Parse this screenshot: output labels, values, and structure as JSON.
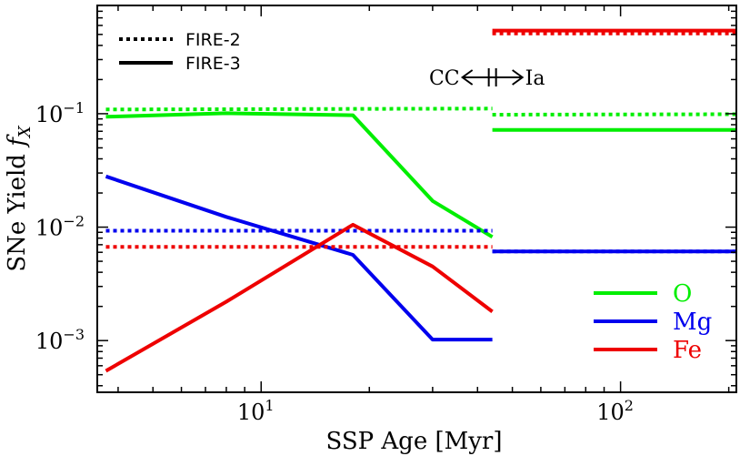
{
  "chart_data": {
    "type": "line",
    "xlabel": "SSP Age [Myr]",
    "ylabel": "SNe Yield",
    "ylabel_symbol": "f",
    "ylabel_subscript": "X",
    "x_scale": "log",
    "y_scale": "log",
    "xlim": [
      3.5,
      210
    ],
    "ylim": [
      0.00035,
      0.9
    ],
    "x_ticks": [
      {
        "value": 10,
        "base": "10",
        "exp": "1"
      },
      {
        "value": 100,
        "base": "10",
        "exp": "2"
      }
    ],
    "y_ticks": [
      {
        "value": 0.001,
        "base": "10",
        "exp": "−3"
      },
      {
        "value": 0.01,
        "base": "10",
        "exp": "−2"
      },
      {
        "value": 0.1,
        "base": "10",
        "exp": "−1"
      }
    ],
    "transition_x": 44,
    "annotation": {
      "left": "CC",
      "right": "Ia"
    },
    "style_legend": {
      "position": "upper-left",
      "entries": [
        {
          "label": "FIRE-2",
          "dash": "dotted"
        },
        {
          "label": "FIRE-3",
          "dash": "solid"
        }
      ]
    },
    "element_legend": {
      "position": "lower-right",
      "entries": [
        {
          "label": "O",
          "color": "#00ee00"
        },
        {
          "label": "Mg",
          "color": "#0000ee"
        },
        {
          "label": "Fe",
          "color": "#ee0000"
        }
      ]
    },
    "series": [
      {
        "element": "O",
        "model": "FIRE-3",
        "color": "#00ee00",
        "dash": "solid",
        "segments": [
          [
            [
              3.7,
              0.094
            ],
            [
              8,
              0.101
            ],
            [
              18,
              0.097
            ],
            [
              30,
              0.017
            ],
            [
              44,
              0.0082
            ]
          ],
          [
            [
              44,
              0.072
            ],
            [
              210,
              0.072
            ]
          ]
        ]
      },
      {
        "element": "O",
        "model": "FIRE-2",
        "color": "#00ee00",
        "dash": "dotted",
        "segments": [
          [
            [
              3.7,
              0.109
            ],
            [
              44,
              0.111
            ]
          ],
          [
            [
              44,
              0.098
            ],
            [
              210,
              0.099
            ]
          ]
        ]
      },
      {
        "element": "Mg",
        "model": "FIRE-3",
        "color": "#0000ee",
        "dash": "solid",
        "segments": [
          [
            [
              3.7,
              0.028
            ],
            [
              8,
              0.0123
            ],
            [
              18,
              0.0057
            ],
            [
              30,
              0.00102
            ],
            [
              44,
              0.00102
            ]
          ],
          [
            [
              44,
              0.0061
            ],
            [
              210,
              0.0061
            ]
          ]
        ]
      },
      {
        "element": "Mg",
        "model": "FIRE-2",
        "color": "#0000ee",
        "dash": "dotted",
        "segments": [
          [
            [
              3.7,
              0.0093
            ],
            [
              44,
              0.0093
            ]
          ],
          [
            [
              44,
              0.0061
            ],
            [
              210,
              0.0061
            ]
          ]
        ]
      },
      {
        "element": "Fe",
        "model": "FIRE-3",
        "color": "#ee0000",
        "dash": "solid",
        "segments": [
          [
            [
              3.7,
              0.00054
            ],
            [
              8,
              0.0022
            ],
            [
              18,
              0.0105
            ],
            [
              30,
              0.0045
            ],
            [
              44,
              0.0018
            ]
          ],
          [
            [
              44,
              0.54
            ],
            [
              210,
              0.54
            ]
          ]
        ]
      },
      {
        "element": "Fe",
        "model": "FIRE-2",
        "color": "#ee0000",
        "dash": "dotted",
        "segments": [
          [
            [
              3.7,
              0.0067
            ],
            [
              44,
              0.0067
            ]
          ],
          [
            [
              44,
              0.51
            ],
            [
              210,
              0.51
            ]
          ]
        ]
      }
    ]
  }
}
